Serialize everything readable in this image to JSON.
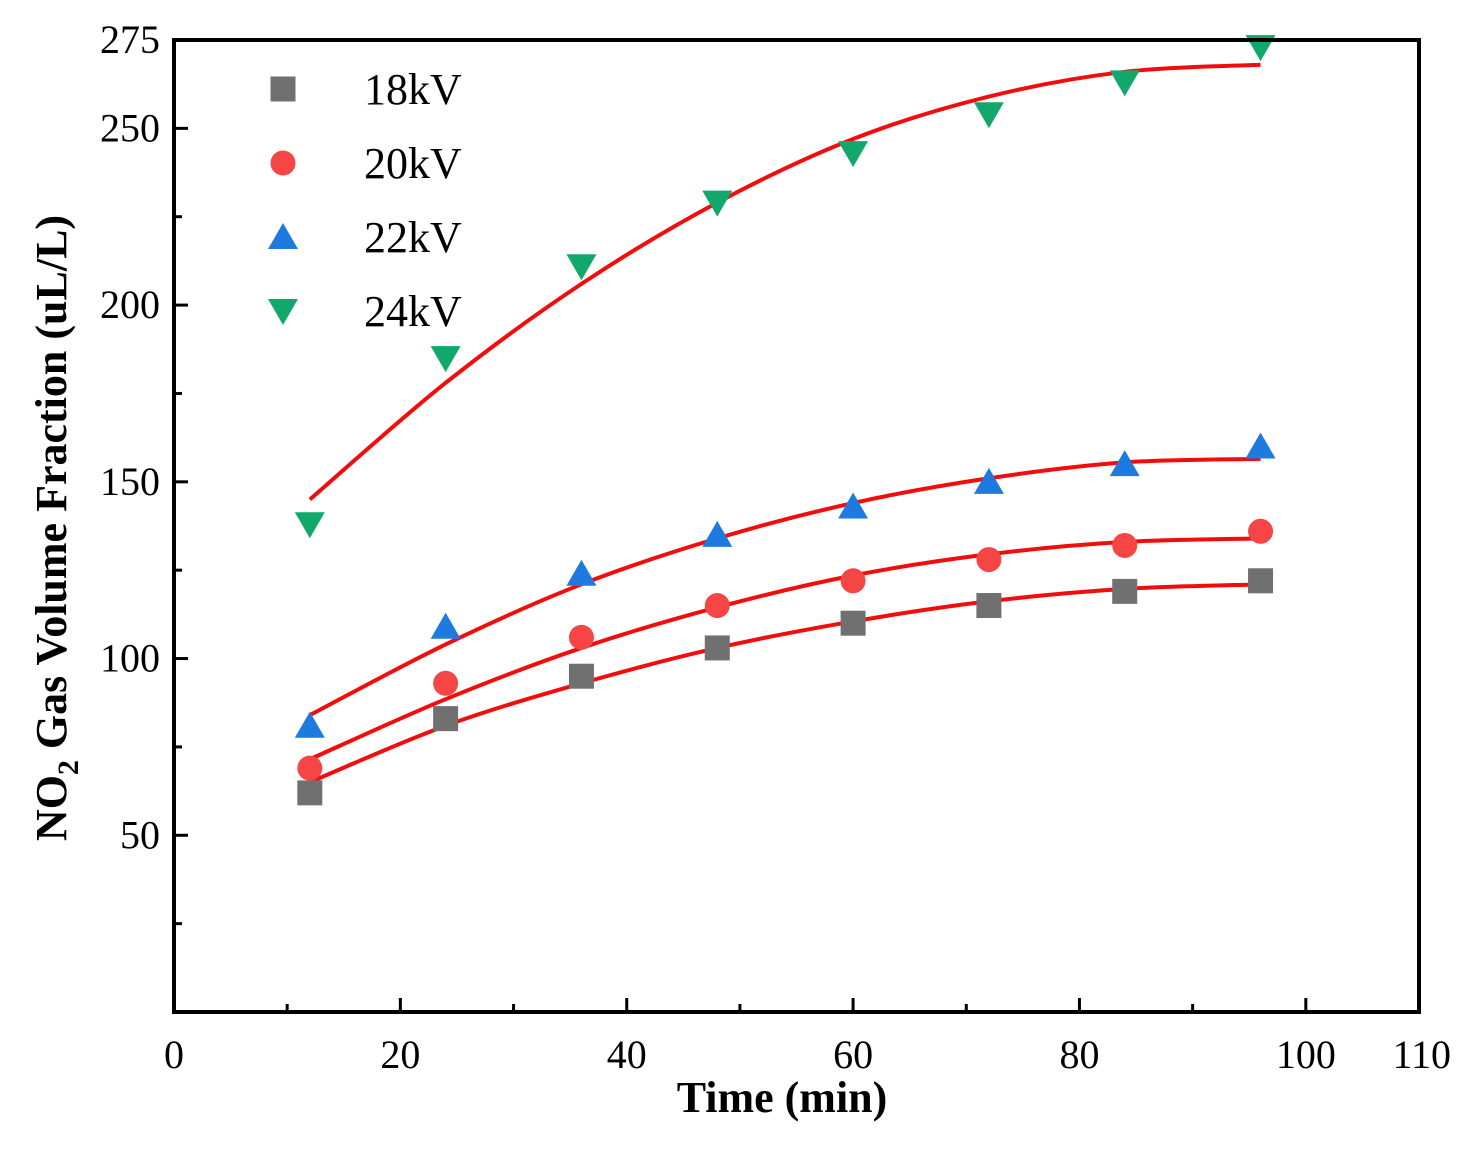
{
  "chart_data": {
    "type": "scatter",
    "title": "",
    "xlabel": "Time (min)",
    "ylabel_parts": [
      "NO",
      "2",
      " Gas Volume Fraction (uL/L)"
    ],
    "xlim": [
      0,
      110
    ],
    "ylim": [
      0,
      275
    ],
    "x_ticks": [
      0,
      20,
      40,
      60,
      80,
      100,
      110
    ],
    "x_tick_labels": [
      "0",
      "20",
      "40",
      "60",
      "80",
      "100",
      "110"
    ],
    "y_ticks": [
      50,
      100,
      150,
      200,
      250,
      275
    ],
    "y_tick_labels": [
      "50",
      "100",
      "150",
      "200",
      "250",
      "275"
    ],
    "legend_position": "top-left",
    "grid": false,
    "fit_color": "#f20d0d",
    "series": [
      {
        "name": "18kV",
        "marker": "square",
        "color": "#707070",
        "x": [
          12,
          24,
          36,
          48,
          60,
          72,
          84,
          96
        ],
        "y": [
          62,
          83,
          95,
          103,
          110,
          115,
          119,
          122
        ],
        "fit_x": [
          12,
          24,
          36,
          48,
          60,
          72,
          84,
          96
        ],
        "fit_y": [
          65,
          81,
          93,
          103,
          110.5,
          116.2,
          119.7,
          121
        ]
      },
      {
        "name": "20kV",
        "marker": "circle",
        "color": "#f54545",
        "x": [
          12,
          24,
          36,
          48,
          60,
          72,
          84,
          96
        ],
        "y": [
          69,
          93,
          106,
          115,
          122,
          128,
          132,
          136
        ],
        "fit_x": [
          12,
          24,
          36,
          48,
          60,
          72,
          84,
          96
        ],
        "fit_y": [
          71.5,
          88.5,
          103,
          114.5,
          123.5,
          129.5,
          133,
          134
        ]
      },
      {
        "name": "22kV",
        "marker": "triangle-up",
        "color": "#1f7ae0",
        "x": [
          12,
          24,
          36,
          48,
          60,
          72,
          84,
          96
        ],
        "y": [
          81,
          109,
          124,
          135,
          143,
          150,
          155,
          160
        ],
        "fit_x": [
          12,
          24,
          36,
          48,
          60,
          72,
          84,
          96
        ],
        "fit_y": [
          84,
          104,
          121,
          134,
          144,
          151,
          155.5,
          156.5
        ]
      },
      {
        "name": "24kV",
        "marker": "triangle-down",
        "color": "#13a86b",
        "x": [
          12,
          24,
          36,
          48,
          60,
          72,
          84,
          96
        ],
        "y": [
          138,
          185,
          211,
          229,
          243,
          254,
          263,
          273
        ],
        "fit_x": [
          12,
          24,
          36,
          48,
          60,
          72,
          84,
          96
        ],
        "fit_y": [
          145,
          178,
          206,
          229,
          247,
          259,
          266,
          268
        ]
      }
    ]
  }
}
